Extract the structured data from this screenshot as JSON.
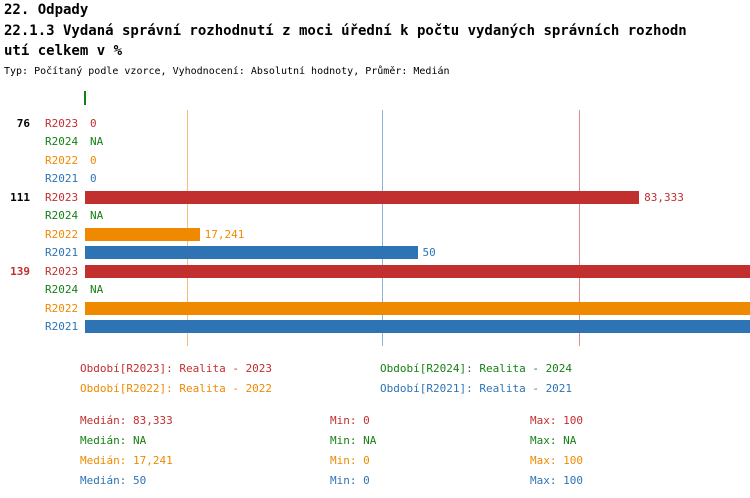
{
  "header": {
    "title": "22. Odpady",
    "subtitle_line1": "22.1.3 Vydaná správní rozhodnutí z moci úřední k počtu vydaných správních rozhodn",
    "subtitle_line2": "utí celkem v %",
    "meta": "Typ: Počítaný podle vzorce, Vyhodnocení: Absolutní hodnoty, Průměr: Medián"
  },
  "chart_data": {
    "type": "bar",
    "orientation": "horizontal",
    "xlim": [
      0,
      100
    ],
    "grid": false,
    "series_colors": {
      "R2023": "#c22f2f",
      "R2024": "#168016",
      "R2022": "#ef8a00",
      "R2021": "#2e74b5"
    },
    "groups": [
      {
        "label": "76",
        "label_color": "#000000",
        "rows": [
          {
            "series": "R2023",
            "value": 0,
            "display": "0"
          },
          {
            "series": "R2024",
            "value": null,
            "display": "NA"
          },
          {
            "series": "R2022",
            "value": 0,
            "display": "0"
          },
          {
            "series": "R2021",
            "value": 0,
            "display": "0"
          }
        ]
      },
      {
        "label": "111",
        "label_color": "#000000",
        "rows": [
          {
            "series": "R2023",
            "value": 83.333,
            "display": "83,333"
          },
          {
            "series": "R2024",
            "value": null,
            "display": "NA"
          },
          {
            "series": "R2022",
            "value": 17.241,
            "display": "17,241"
          },
          {
            "series": "R2021",
            "value": 50,
            "display": "50"
          }
        ]
      },
      {
        "label": "139",
        "label_color": "#c22f2f",
        "rows": [
          {
            "series": "R2023",
            "value": 100,
            "display": "100"
          },
          {
            "series": "R2024",
            "value": null,
            "display": "NA"
          },
          {
            "series": "R2022",
            "value": 100,
            "display": "100"
          },
          {
            "series": "R2021",
            "value": 100,
            "display": "100"
          }
        ]
      }
    ],
    "medians": [
      {
        "series": "R2023",
        "value": 83.333,
        "color": "#c22f2f"
      },
      {
        "series": "R2024",
        "value": null,
        "color": "#168016"
      },
      {
        "series": "R2022",
        "value": 17.241,
        "color": "#ef8a00"
      },
      {
        "series": "R2021",
        "value": 50,
        "color": "#2e74b5"
      }
    ]
  },
  "legend": {
    "items": [
      {
        "label": "Období[R2023]: Realita - 2023",
        "color": "#c22f2f"
      },
      {
        "label": "Období[R2024]: Realita - 2024",
        "color": "#168016"
      },
      {
        "label": "Období[R2022]: Realita - 2022",
        "color": "#ef8a00"
      },
      {
        "label": "Období[R2021]: Realita - 2021",
        "color": "#2e74b5"
      }
    ]
  },
  "stats": {
    "rows": [
      {
        "median": "Medián: 83,333",
        "min": "Min: 0",
        "max": "Max: 100",
        "color": "#c22f2f"
      },
      {
        "median": "Medián: NA",
        "min": "Min: NA",
        "max": "Max: NA",
        "color": "#168016"
      },
      {
        "median": "Medián: 17,241",
        "min": "Min: 0",
        "max": "Max: 100",
        "color": "#ef8a00"
      },
      {
        "median": "Medián: 50",
        "min": "Min: 0",
        "max": "Max: 100",
        "color": "#2e74b5"
      }
    ]
  }
}
